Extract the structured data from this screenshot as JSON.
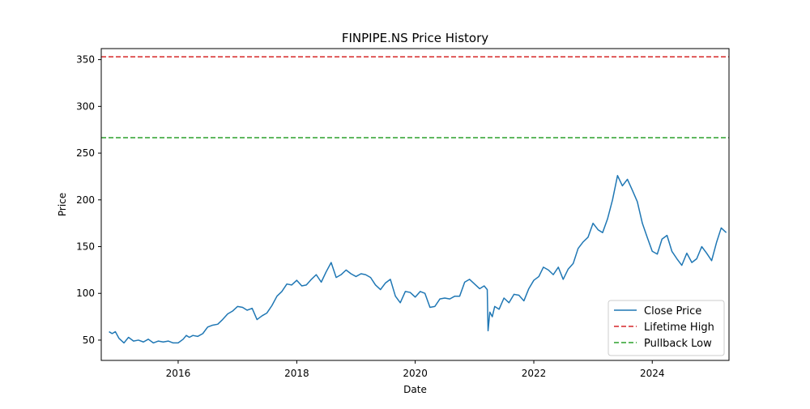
{
  "chart_data": {
    "type": "line",
    "title": "FINPIPE.NS Price History",
    "xlabel": "Date",
    "ylabel": "Price",
    "xlim": [
      "2014-09-14",
      "2025-04-18"
    ],
    "ylim": [
      28.3,
      361.8
    ],
    "xticks": [
      "2016",
      "2018",
      "2020",
      "2022",
      "2024"
    ],
    "yticks": [
      50,
      100,
      150,
      200,
      250,
      300,
      350
    ],
    "grid": false,
    "legend": {
      "position": "lower right",
      "entries": [
        "Close Price",
        "Lifetime High",
        "Pullback Low"
      ]
    },
    "colors": {
      "close": "#1f77b4",
      "lifetime_high": "#d62728",
      "pullback_low": "#2ca02c"
    },
    "series": [
      {
        "name": "Close Price",
        "style": "solid",
        "points": [
          [
            "2014-11-01",
            59
          ],
          [
            "2014-11-20",
            57
          ],
          [
            "2014-12-10",
            59
          ],
          [
            "2015-01-01",
            52
          ],
          [
            "2015-02-01",
            47
          ],
          [
            "2015-03-01",
            53
          ],
          [
            "2015-04-01",
            49
          ],
          [
            "2015-05-01",
            50
          ],
          [
            "2015-06-01",
            48
          ],
          [
            "2015-07-01",
            51
          ],
          [
            "2015-08-01",
            47
          ],
          [
            "2015-09-01",
            49
          ],
          [
            "2015-10-01",
            48
          ],
          [
            "2015-11-01",
            49
          ],
          [
            "2015-12-01",
            47
          ],
          [
            "2016-01-01",
            47
          ],
          [
            "2016-02-01",
            51
          ],
          [
            "2016-02-20",
            55
          ],
          [
            "2016-03-10",
            53
          ],
          [
            "2016-04-01",
            55
          ],
          [
            "2016-05-01",
            54
          ],
          [
            "2016-06-01",
            57
          ],
          [
            "2016-07-01",
            64
          ],
          [
            "2016-08-01",
            66
          ],
          [
            "2016-09-01",
            67
          ],
          [
            "2016-10-01",
            72
          ],
          [
            "2016-11-01",
            78
          ],
          [
            "2016-12-01",
            81
          ],
          [
            "2017-01-01",
            86
          ],
          [
            "2017-02-01",
            85
          ],
          [
            "2017-03-01",
            82
          ],
          [
            "2017-04-01",
            84
          ],
          [
            "2017-05-01",
            72
          ],
          [
            "2017-06-01",
            76
          ],
          [
            "2017-07-01",
            79
          ],
          [
            "2017-08-01",
            87
          ],
          [
            "2017-09-01",
            97
          ],
          [
            "2017-10-01",
            102
          ],
          [
            "2017-11-01",
            110
          ],
          [
            "2017-12-01",
            109
          ],
          [
            "2018-01-01",
            114
          ],
          [
            "2018-02-01",
            108
          ],
          [
            "2018-03-01",
            109
          ],
          [
            "2018-04-01",
            115
          ],
          [
            "2018-05-01",
            120
          ],
          [
            "2018-06-01",
            112
          ],
          [
            "2018-07-01",
            123
          ],
          [
            "2018-08-01",
            133
          ],
          [
            "2018-09-01",
            117
          ],
          [
            "2018-10-01",
            120
          ],
          [
            "2018-11-01",
            125
          ],
          [
            "2018-12-01",
            121
          ],
          [
            "2019-01-01",
            118
          ],
          [
            "2019-02-01",
            121
          ],
          [
            "2019-03-01",
            120
          ],
          [
            "2019-04-01",
            117
          ],
          [
            "2019-05-01",
            109
          ],
          [
            "2019-06-01",
            104
          ],
          [
            "2019-07-01",
            111
          ],
          [
            "2019-08-01",
            115
          ],
          [
            "2019-09-01",
            97
          ],
          [
            "2019-10-01",
            90
          ],
          [
            "2019-11-01",
            102
          ],
          [
            "2019-12-01",
            101
          ],
          [
            "2020-01-01",
            96
          ],
          [
            "2020-02-01",
            102
          ],
          [
            "2020-03-01",
            100
          ],
          [
            "2020-04-01",
            85
          ],
          [
            "2020-05-01",
            86
          ],
          [
            "2020-06-01",
            94
          ],
          [
            "2020-07-01",
            95
          ],
          [
            "2020-08-01",
            94
          ],
          [
            "2020-09-01",
            97
          ],
          [
            "2020-10-01",
            97
          ],
          [
            "2020-11-01",
            112
          ],
          [
            "2020-12-01",
            115
          ],
          [
            "2021-01-01",
            110
          ],
          [
            "2021-02-01",
            105
          ],
          [
            "2021-03-01",
            108
          ],
          [
            "2021-03-20",
            104
          ],
          [
            "2021-03-25",
            60
          ],
          [
            "2021-04-05",
            80
          ],
          [
            "2021-04-20",
            75
          ],
          [
            "2021-05-05",
            86
          ],
          [
            "2021-06-01",
            83
          ],
          [
            "2021-07-01",
            95
          ],
          [
            "2021-08-01",
            90
          ],
          [
            "2021-09-01",
            99
          ],
          [
            "2021-10-01",
            98
          ],
          [
            "2021-11-01",
            92
          ],
          [
            "2021-12-01",
            105
          ],
          [
            "2022-01-01",
            114
          ],
          [
            "2022-02-01",
            118
          ],
          [
            "2022-03-01",
            128
          ],
          [
            "2022-04-01",
            125
          ],
          [
            "2022-05-01",
            120
          ],
          [
            "2022-06-01",
            128
          ],
          [
            "2022-07-01",
            115
          ],
          [
            "2022-08-01",
            126
          ],
          [
            "2022-09-01",
            132
          ],
          [
            "2022-10-01",
            148
          ],
          [
            "2022-11-01",
            155
          ],
          [
            "2022-12-01",
            160
          ],
          [
            "2023-01-01",
            175
          ],
          [
            "2023-02-01",
            168
          ],
          [
            "2023-03-01",
            165
          ],
          [
            "2023-04-01",
            180
          ],
          [
            "2023-05-01",
            200
          ],
          [
            "2023-06-01",
            226
          ],
          [
            "2023-07-01",
            215
          ],
          [
            "2023-08-01",
            222
          ],
          [
            "2023-09-01",
            210
          ],
          [
            "2023-10-01",
            198
          ],
          [
            "2023-11-01",
            175
          ],
          [
            "2023-12-01",
            160
          ],
          [
            "2024-01-01",
            145
          ],
          [
            "2024-02-01",
            142
          ],
          [
            "2024-03-01",
            158
          ],
          [
            "2024-04-01",
            162
          ],
          [
            "2024-05-01",
            145
          ],
          [
            "2024-06-01",
            137
          ],
          [
            "2024-07-01",
            130
          ],
          [
            "2024-08-01",
            143
          ],
          [
            "2024-09-01",
            133
          ],
          [
            "2024-10-01",
            137
          ],
          [
            "2024-11-01",
            150
          ],
          [
            "2024-12-01",
            143
          ],
          [
            "2025-01-01",
            135
          ],
          [
            "2025-02-01",
            155
          ],
          [
            "2025-03-01",
            170
          ],
          [
            "2025-04-01",
            165
          ]
        ]
      },
      {
        "name": "Lifetime High",
        "style": "dashed",
        "y": 353
      },
      {
        "name": "Pullback Low",
        "style": "dashed",
        "y": 266.5
      }
    ]
  }
}
